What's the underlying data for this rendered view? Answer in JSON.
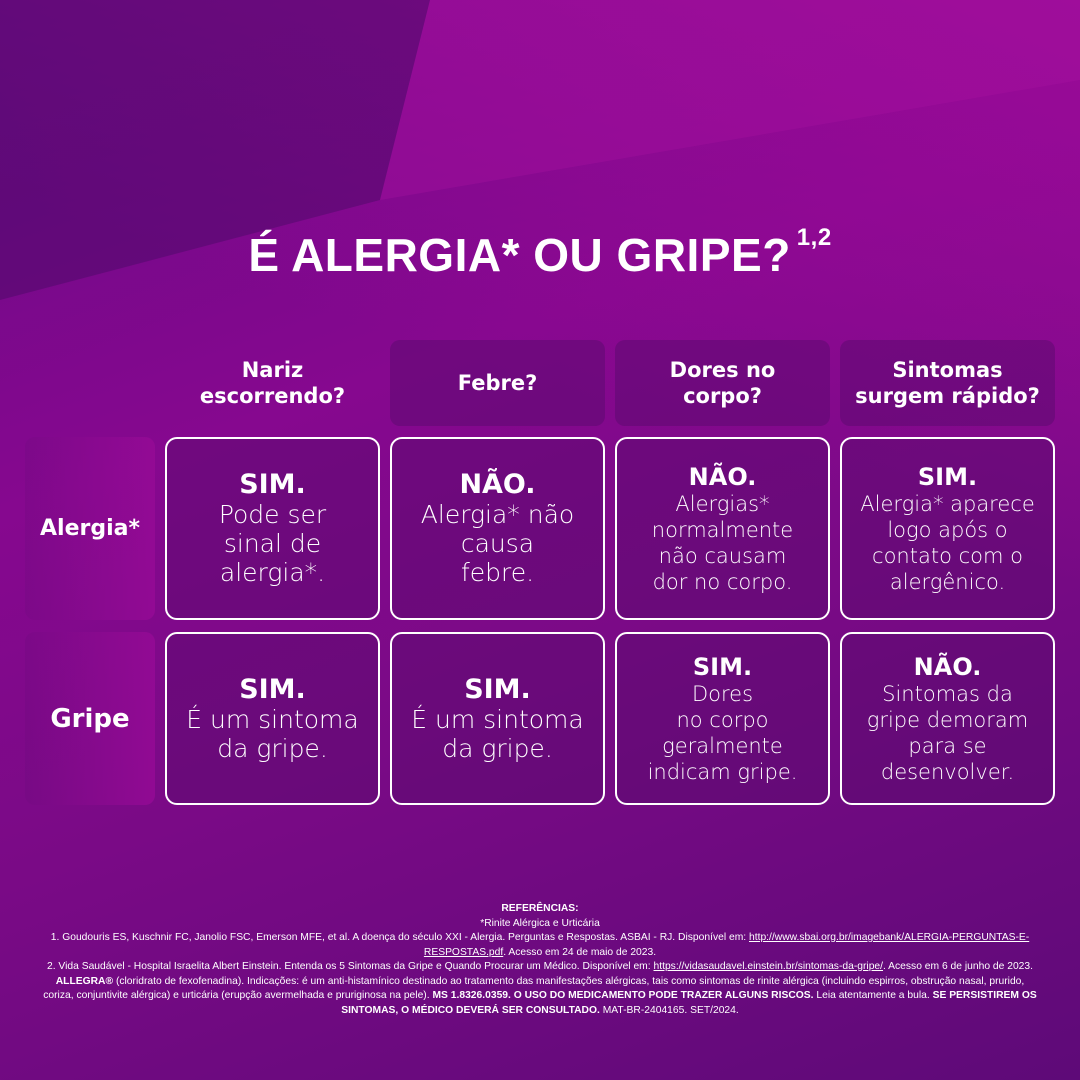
{
  "title": "É ALERGIA* OU GRIPE?",
  "title_sup": "1,2",
  "columns": [
    "Nariz\nescorrendo?",
    "Febre?",
    "Dores no\ncorpo?",
    "Sintomas\nsurgem rápido?"
  ],
  "rows": [
    {
      "label": "Alergia*",
      "cells": [
        {
          "head": "SIM.",
          "body": "Pode ser\nsinal de\nalergia*."
        },
        {
          "head": "NÃO.",
          "body": "Alergia* não\ncausa\nfebre."
        },
        {
          "head": "NÃO.",
          "body": "Alergias*\nnormalmente\nnão causam\ndor no corpo."
        },
        {
          "head": "SIM.",
          "body": "Alergia* aparece\nlogo após o\ncontato com o\nalergênico."
        }
      ]
    },
    {
      "label": "Gripe",
      "cells": [
        {
          "head": "SIM.",
          "body": "É um sintoma\nda gripe."
        },
        {
          "head": "SIM.",
          "body": "É um sintoma\nda gripe."
        },
        {
          "head": "SIM.",
          "body": "Dores\nno corpo\ngeralmente\nindicam gripe."
        },
        {
          "head": "NÃO.",
          "body": "Sintomas da\ngripe demoram\npara se\ndesenvolver."
        }
      ]
    }
  ],
  "refs": {
    "heading": "REFERÊNCIAS:",
    "note": "*Rinite Alérgica e Urticária",
    "ref1_text": "1. Goudouris ES, Kuschnir FC, Janolio FSC, Emerson MFE, et al. A doença do século XXI - Alergia. Perguntas e Respostas. ASBAI - RJ. Disponível em: ",
    "ref1_link": "http://www.sbai.org.br/imagebank/ALERGIA-PERGUNTAS-E-RESPOSTAS.pdf",
    "ref1_access": ". Acesso em 24 de maio de 2023.",
    "ref2_text": "2. Vida Saudável - Hospital Israelita Albert Einstein. Entenda os 5 Sintomas da Gripe e Quando Procurar um Médico. Disponível em: ",
    "ref2_link": "https://vidasaudavel.einstein.br/sintomas-da-gripe/",
    "ref2_access": ". Acesso em 6 de junho de 2023.",
    "brand": "ALLEGRA®",
    "indications": " (cloridrato de fexofenadina). Indicações: é um anti-histamínico destinado ao tratamento das manifestações alérgicas, tais como sintomas de rinite alérgica (incluindo espirros, obstrução nasal, prurido, coriza, conjuntivite alérgica) e urticária (erupção avermelhada e pruriginosa na pele). ",
    "warning1": "MS 1.8326.0359. O USO DO MEDICAMENTO PODE TRAZER ALGUNS RISCOS.",
    "read": " Leia atentamente a bula. ",
    "warning2": "SE PERSISTIREM OS SINTOMAS, O MÉDICO DEVERÁ SER CONSULTADO.",
    "code": "  MAT-BR-2404165. SET/2024."
  }
}
